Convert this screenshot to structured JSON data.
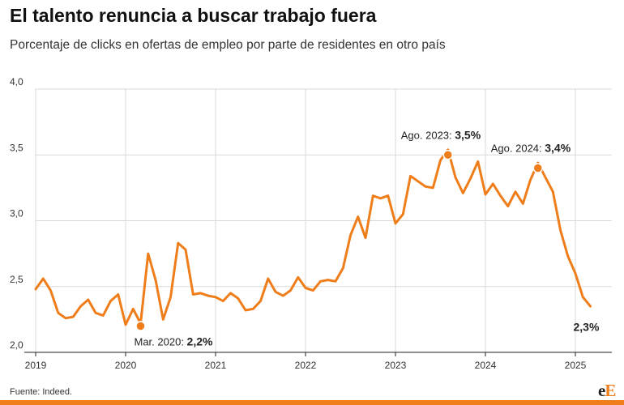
{
  "header": {
    "title": "El talento renuncia a buscar trabajo fuera",
    "subtitle": "Porcentaje de clicks en ofertas de empleo por parte de residentes en otro país"
  },
  "footer": {
    "source": "Fuente: Indeed.",
    "logo_small": "e",
    "logo_big": "E"
  },
  "colors": {
    "series": "#ef7d1a",
    "grid": "#d9d9d9",
    "axis": "#222222"
  },
  "chart_data": {
    "type": "line",
    "xlim": [
      "2019-01",
      "2025-06"
    ],
    "ylim": [
      2.0,
      4.0
    ],
    "yticks": [
      {
        "value": 2.0,
        "label": "2,0"
      },
      {
        "value": 2.5,
        "label": "2,5"
      },
      {
        "value": 3.0,
        "label": "3,0"
      },
      {
        "value": 3.5,
        "label": "3,5"
      },
      {
        "value": 4.0,
        "label": "4,0"
      }
    ],
    "xticks": [
      "2019",
      "2020",
      "2021",
      "2022",
      "2023",
      "2024",
      "2025"
    ],
    "grid": true,
    "series": [
      {
        "x": [
          "2019-01",
          "2019-02",
          "2019-03",
          "2019-04",
          "2019-05",
          "2019-06",
          "2019-07",
          "2019-08",
          "2019-09",
          "2019-10",
          "2019-11",
          "2019-12",
          "2020-01",
          "2020-02",
          "2020-03",
          "2020-04",
          "2020-05",
          "2020-06",
          "2020-07",
          "2020-08",
          "2020-09",
          "2020-10",
          "2020-11",
          "2020-12",
          "2021-01",
          "2021-02",
          "2021-03",
          "2021-04",
          "2021-05",
          "2021-06",
          "2021-07",
          "2021-08",
          "2021-09",
          "2021-10",
          "2021-11",
          "2021-12",
          "2022-01",
          "2022-02",
          "2022-03",
          "2022-04",
          "2022-05",
          "2022-06",
          "2022-07",
          "2022-08",
          "2022-09",
          "2022-10",
          "2022-11",
          "2022-12",
          "2023-01",
          "2023-02",
          "2023-03",
          "2023-04",
          "2023-05",
          "2023-06",
          "2023-07",
          "2023-08",
          "2023-09",
          "2023-10",
          "2023-11",
          "2023-12",
          "2024-01",
          "2024-02",
          "2024-03",
          "2024-04",
          "2024-05",
          "2024-06",
          "2024-07",
          "2024-08",
          "2024-09",
          "2024-10",
          "2024-11",
          "2024-12",
          "2025-01",
          "2025-02",
          "2025-03"
        ],
        "values": [
          2.48,
          2.56,
          2.47,
          2.3,
          2.26,
          2.27,
          2.35,
          2.4,
          2.3,
          2.28,
          2.39,
          2.44,
          2.21,
          2.33,
          2.22,
          2.75,
          2.55,
          2.25,
          2.42,
          2.83,
          2.78,
          2.44,
          2.45,
          2.43,
          2.42,
          2.39,
          2.45,
          2.41,
          2.32,
          2.33,
          2.39,
          2.56,
          2.46,
          2.43,
          2.47,
          2.57,
          2.49,
          2.47,
          2.54,
          2.55,
          2.54,
          2.64,
          2.89,
          3.03,
          2.87,
          3.19,
          3.17,
          3.19,
          2.98,
          3.05,
          3.34,
          3.3,
          3.26,
          3.25,
          3.46,
          3.54,
          3.33,
          3.21,
          3.32,
          3.45,
          3.2,
          3.28,
          3.19,
          3.11,
          3.22,
          3.13,
          3.31,
          3.44,
          3.33,
          3.22,
          2.93,
          2.73,
          2.6,
          2.42,
          2.35
        ]
      }
    ],
    "highlights": [
      {
        "x": "2020-03",
        "y": 2.2,
        "label": "Mar. 2020:",
        "value_label": "2,2%",
        "marker": true
      },
      {
        "x": "2023-08",
        "y": 3.5,
        "label": "Ago. 2023:",
        "value_label": "3,5%",
        "marker": true
      },
      {
        "x": "2024-08",
        "y": 3.4,
        "label": "Ago. 2024:",
        "value_label": "3,4%",
        "marker": true
      },
      {
        "x": "2025-03",
        "y": 2.3,
        "label": "",
        "value_label": "2,3%",
        "marker": false
      }
    ]
  }
}
